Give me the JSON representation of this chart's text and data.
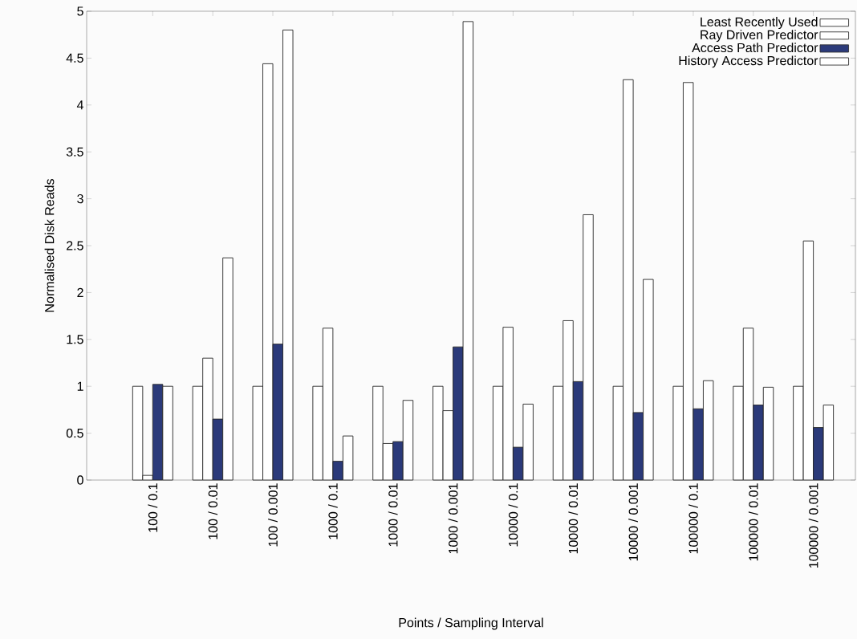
{
  "chart_data": {
    "type": "bar",
    "xlabel": "Points / Sampling Interval",
    "ylabel": "Normalised Disk Reads",
    "categories": [
      "100 / 0.1",
      "100 / 0.01",
      "100 / 0.001",
      "1000 / 0.1",
      "1000 / 0.01",
      "1000 / 0.001",
      "10000 / 0.1",
      "10000 / 0.01",
      "10000 / 0.001",
      "100000 / 0.1",
      "100000 / 0.01",
      "100000 / 0.001"
    ],
    "series": [
      {
        "name": "Least Recently Used",
        "color": "#ffffff",
        "values": [
          1,
          1,
          1,
          1,
          1,
          1,
          1,
          1,
          1,
          1,
          1,
          1
        ]
      },
      {
        "name": "Ray Driven Predictor",
        "color": "#ffffff",
        "values": [
          0.05,
          1.3,
          4.44,
          1.62,
          0.39,
          0.74,
          1.63,
          1.7,
          4.27,
          4.24,
          1.62,
          2.55
        ]
      },
      {
        "name": "Access Path Predictor",
        "color": "#2b3a7a",
        "values": [
          1.02,
          0.65,
          1.45,
          0.2,
          0.41,
          1.42,
          0.35,
          1.05,
          0.72,
          0.76,
          0.8,
          0.56
        ]
      },
      {
        "name": "History Access Predictor",
        "color": "#ffffff",
        "values": [
          1,
          2.37,
          4.8,
          0.47,
          0.85,
          4.89,
          0.81,
          2.83,
          2.14,
          1.06,
          0.99,
          0.8
        ]
      }
    ],
    "ylim": [
      0,
      5
    ],
    "yticks": [
      0,
      0.5,
      1,
      1.5,
      2,
      2.5,
      3,
      3.5,
      4,
      4.5,
      5
    ],
    "grid": false,
    "legend": "top right"
  }
}
